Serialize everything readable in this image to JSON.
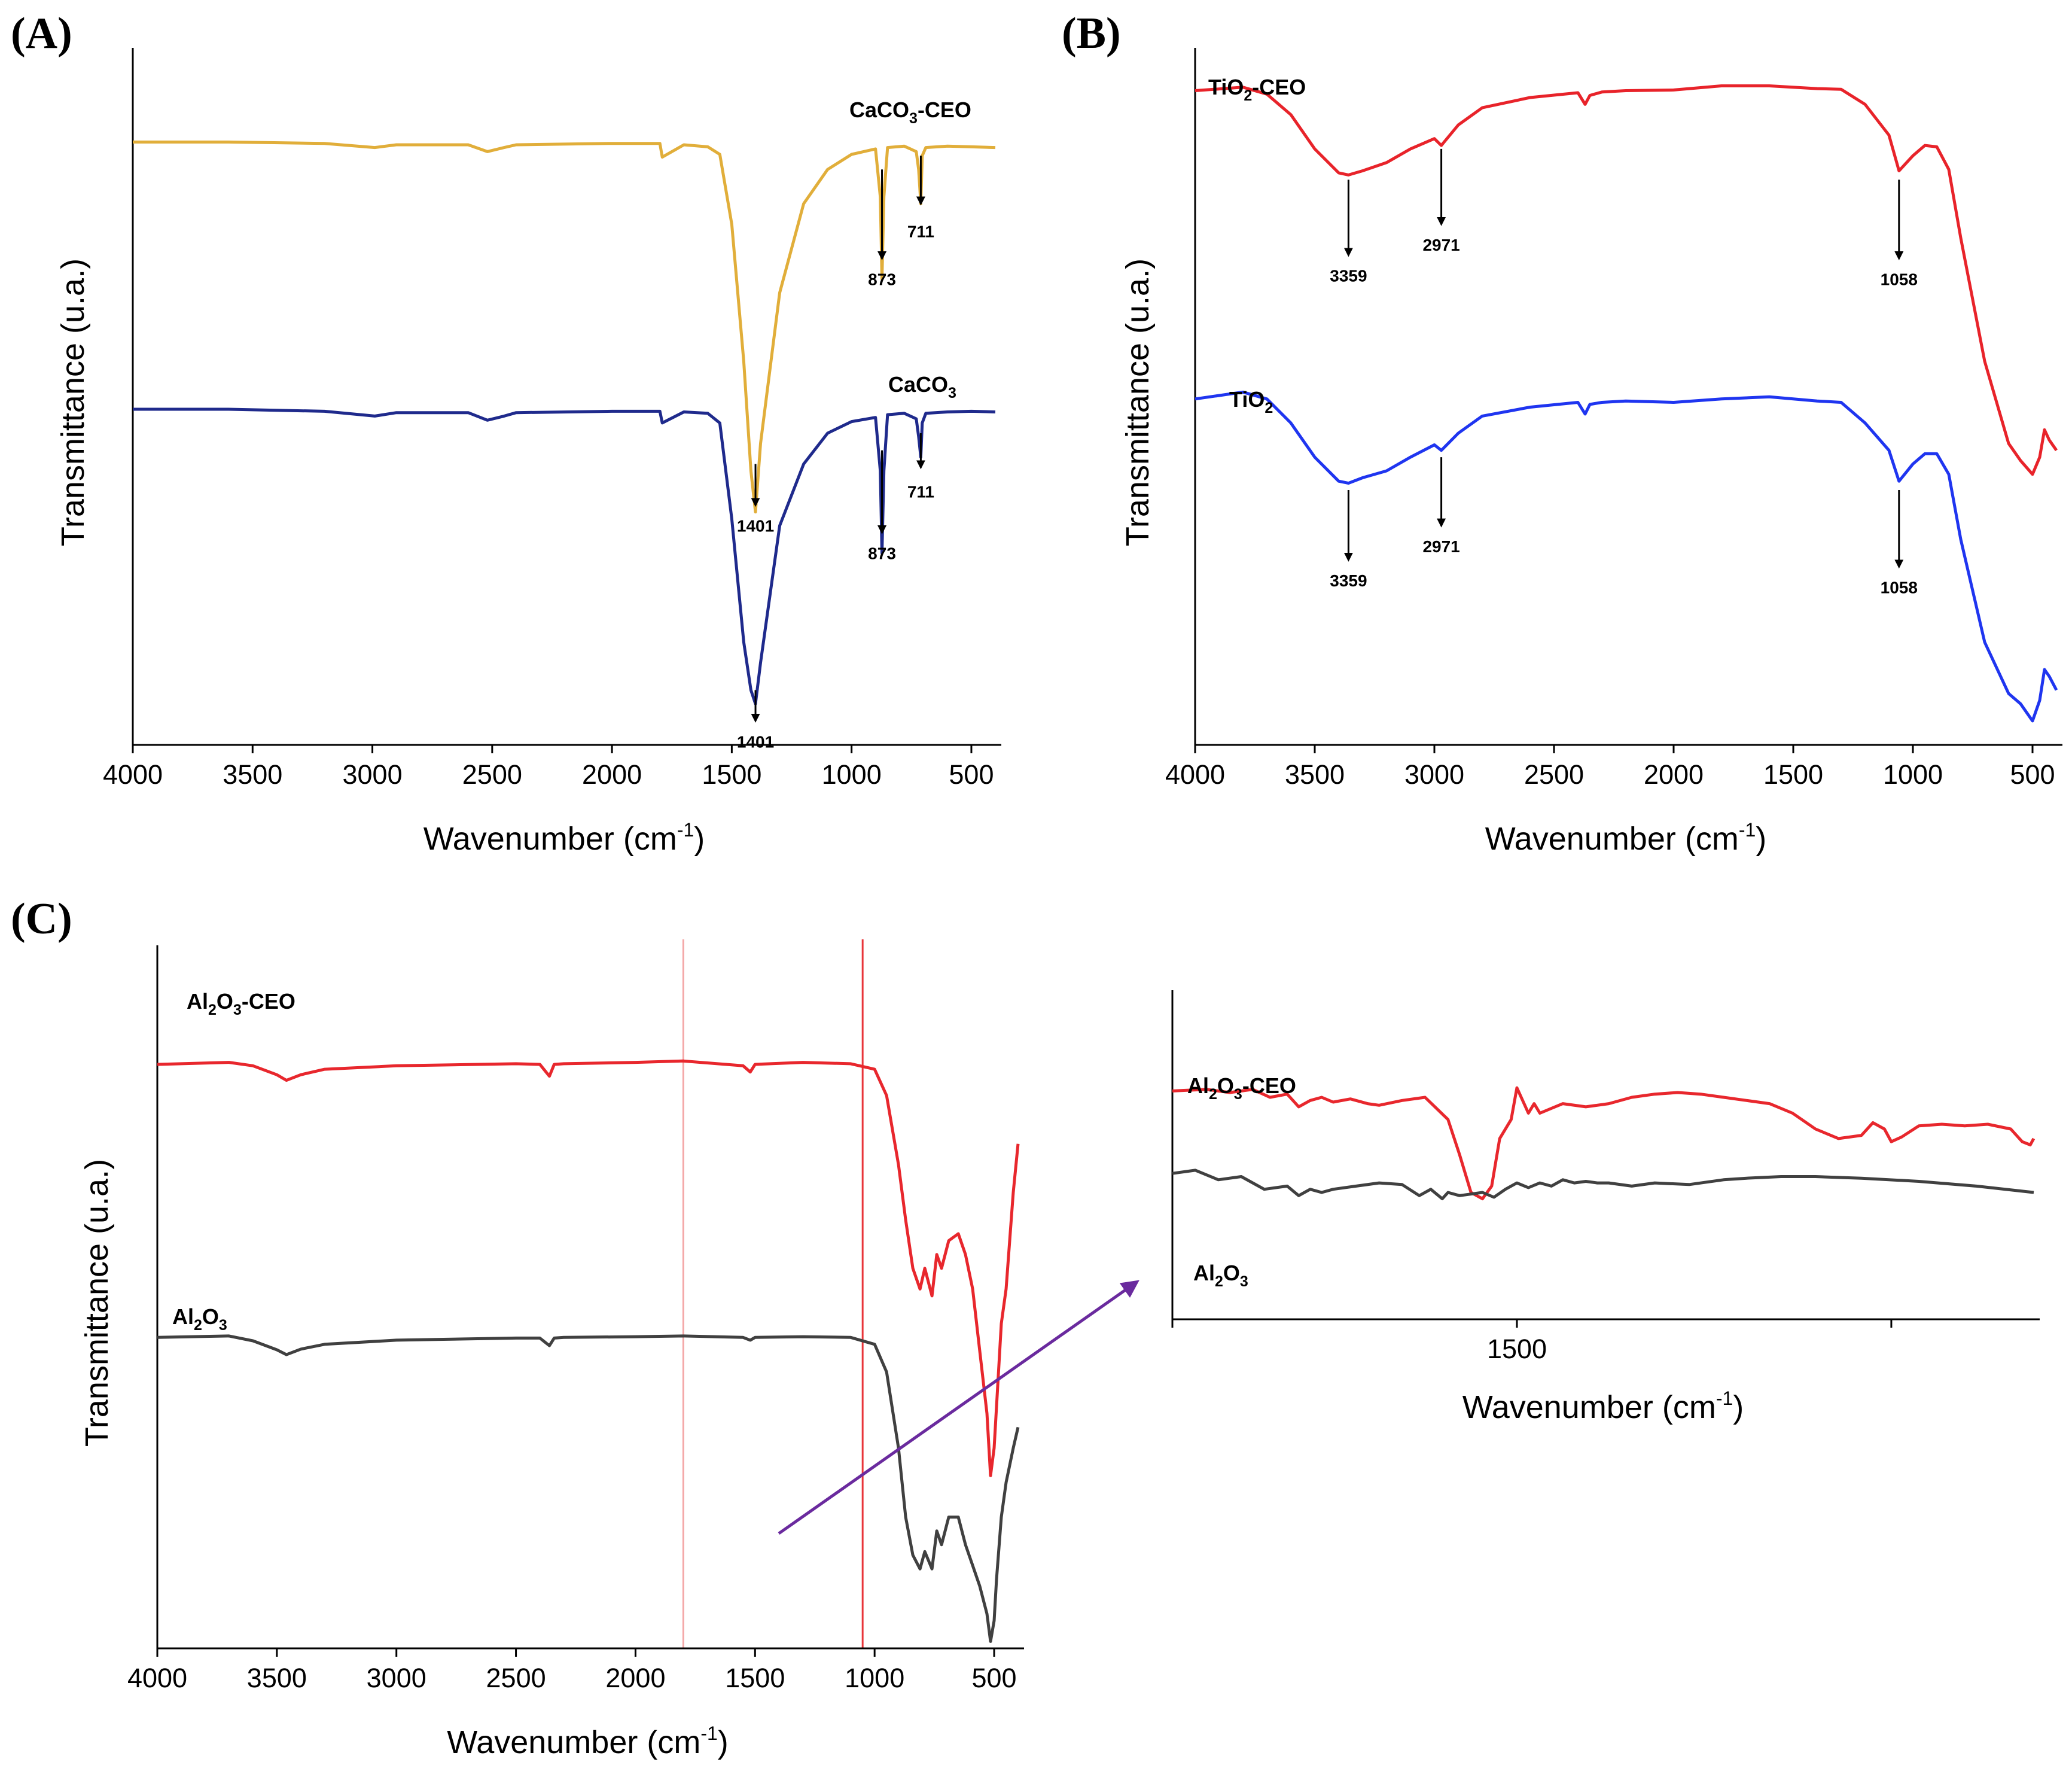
{
  "chart_data": [
    {
      "type": "line",
      "panel": "(A)",
      "xlabel": "Wavenumber (cm-1)",
      "xlabel_text": "Wavenumber (cm",
      "xlabel_sup": "-1",
      "xlabel_close": ")",
      "ylabel": "Transmittance (u.a.)",
      "xlim": [
        4000,
        400
      ],
      "xticks": [
        4000,
        3500,
        3000,
        2500,
        2000,
        1500,
        1000,
        500
      ],
      "ylim": [
        0,
        1
      ],
      "series": [
        {
          "name": "CaCO3-CEO",
          "label_main": "CaCO",
          "label_sub": "3",
          "label_suffix": "-CEO",
          "color": "#E1AE3A",
          "x": [
            4000,
            3600,
            3200,
            2990,
            2900,
            2600,
            2520,
            2450,
            2400,
            2000,
            1800,
            1790,
            1700,
            1600,
            1550,
            1500,
            1450,
            1420,
            1401,
            1380,
            1300,
            1200,
            1100,
            1000,
            900,
            880,
            873,
            865,
            850,
            780,
            730,
            720,
            711,
            705,
            690,
            600,
            500,
            400
          ],
          "y": [
            0.88,
            0.88,
            0.878,
            0.872,
            0.876,
            0.876,
            0.866,
            0.872,
            0.876,
            0.878,
            0.878,
            0.858,
            0.876,
            0.873,
            0.862,
            0.76,
            0.56,
            0.4,
            0.34,
            0.44,
            0.66,
            0.79,
            0.84,
            0.862,
            0.87,
            0.8,
            0.68,
            0.8,
            0.872,
            0.874,
            0.866,
            0.84,
            0.79,
            0.86,
            0.872,
            0.874,
            0.873,
            0.872
          ],
          "peaks": [
            {
              "x": 1401,
              "label": "1401",
              "y_tip": 0.41,
              "y_end": 0.35,
              "label_y": 0.32,
              "label_dx": 0
            },
            {
              "x": 873,
              "label": "873",
              "y_tip": 0.84,
              "y_end": 0.71,
              "label_y": 0.68,
              "label_dx": 0
            },
            {
              "x": 711,
              "label": "711",
              "y_tip": 0.86,
              "y_end": 0.79,
              "label_y": 0.75,
              "label_dx": 0
            }
          ]
        },
        {
          "name": "CaCO3",
          "label_main": "CaCO",
          "label_sub": "3",
          "label_suffix": "",
          "color": "#1F2A8C",
          "x": [
            4000,
            3600,
            3200,
            2990,
            2900,
            2600,
            2520,
            2450,
            2400,
            2000,
            1800,
            1790,
            1700,
            1600,
            1550,
            1500,
            1450,
            1420,
            1401,
            1380,
            1300,
            1200,
            1100,
            1000,
            900,
            880,
            873,
            865,
            850,
            780,
            730,
            720,
            711,
            705,
            690,
            600,
            500,
            400
          ],
          "y": [
            0.49,
            0.49,
            0.487,
            0.48,
            0.485,
            0.485,
            0.474,
            0.48,
            0.485,
            0.487,
            0.487,
            0.47,
            0.486,
            0.484,
            0.47,
            0.33,
            0.15,
            0.08,
            0.06,
            0.12,
            0.32,
            0.41,
            0.455,
            0.472,
            0.478,
            0.4,
            0.28,
            0.4,
            0.482,
            0.484,
            0.476,
            0.45,
            0.42,
            0.47,
            0.484,
            0.486,
            0.487,
            0.486
          ],
          "peaks": [
            {
              "x": 1401,
              "label": "1401",
              "y_tip": 0.08,
              "y_end": 0.035,
              "label_y": 0.005,
              "label_dx": 0
            },
            {
              "x": 873,
              "label": "873",
              "y_tip": 0.43,
              "y_end": 0.31,
              "label_y": 0.28,
              "label_dx": 0
            },
            {
              "x": 711,
              "label": "711",
              "y_tip": 0.455,
              "y_end": 0.405,
              "label_y": 0.37,
              "label_dx": 0
            }
          ]
        }
      ]
    },
    {
      "type": "line",
      "panel": "(B)",
      "xlabel": "Wavenumber (cm-1)",
      "xlabel_text": "Wavenumber (cm",
      "xlabel_sup": "-1",
      "xlabel_close": ")",
      "ylabel": "Transmittance (u.a.)",
      "xlim": [
        4000,
        400
      ],
      "xticks": [
        4000,
        3500,
        3000,
        2500,
        2000,
        1500,
        1000,
        500
      ],
      "ylim": [
        0,
        1
      ],
      "series": [
        {
          "name": "TiO2-CEO",
          "label_main": "TiO",
          "label_sub": "2",
          "label_suffix": "-CEO",
          "color": "#E8232A",
          "x": [
            4000,
            3800,
            3700,
            3600,
            3500,
            3400,
            3359,
            3300,
            3200,
            3100,
            3000,
            2971,
            2900,
            2800,
            2600,
            2400,
            2370,
            2350,
            2300,
            2200,
            2000,
            1800,
            1600,
            1400,
            1300,
            1200,
            1100,
            1058,
            1000,
            950,
            900,
            850,
            800,
            700,
            600,
            550,
            500,
            470,
            450,
            430,
            400
          ],
          "y": [
            0.955,
            0.96,
            0.95,
            0.92,
            0.87,
            0.835,
            0.832,
            0.838,
            0.85,
            0.87,
            0.885,
            0.875,
            0.905,
            0.93,
            0.945,
            0.952,
            0.935,
            0.948,
            0.953,
            0.955,
            0.956,
            0.962,
            0.962,
            0.958,
            0.957,
            0.935,
            0.89,
            0.838,
            0.86,
            0.875,
            0.873,
            0.84,
            0.74,
            0.56,
            0.44,
            0.415,
            0.395,
            0.42,
            0.46,
            0.445,
            0.43
          ],
          "peaks": [
            {
              "x": 3359,
              "label": "3359",
              "y_tip": 0.825,
              "y_end": 0.715,
              "label_y": 0.685,
              "label_dx": 0
            },
            {
              "x": 2971,
              "label": "2971",
              "y_tip": 0.87,
              "y_end": 0.76,
              "label_y": 0.73,
              "label_dx": 0
            },
            {
              "x": 1058,
              "label": "1058",
              "y_tip": 0.825,
              "y_end": 0.71,
              "label_y": 0.68,
              "label_dx": 0
            }
          ]
        },
        {
          "name": "TiO2",
          "label_main": "TiO",
          "label_sub": "2",
          "label_suffix": "",
          "color": "#1F35F0",
          "x": [
            4000,
            3800,
            3700,
            3600,
            3500,
            3400,
            3359,
            3300,
            3200,
            3100,
            3000,
            2971,
            2900,
            2800,
            2600,
            2400,
            2370,
            2350,
            2300,
            2200,
            2000,
            1800,
            1600,
            1400,
            1300,
            1200,
            1100,
            1058,
            1000,
            950,
            900,
            850,
            800,
            700,
            600,
            550,
            500,
            470,
            450,
            430,
            400
          ],
          "y": [
            0.505,
            0.515,
            0.505,
            0.47,
            0.42,
            0.385,
            0.382,
            0.39,
            0.4,
            0.42,
            0.438,
            0.43,
            0.455,
            0.48,
            0.493,
            0.5,
            0.483,
            0.497,
            0.5,
            0.502,
            0.5,
            0.505,
            0.508,
            0.502,
            0.5,
            0.47,
            0.43,
            0.385,
            0.41,
            0.425,
            0.425,
            0.395,
            0.3,
            0.15,
            0.075,
            0.06,
            0.035,
            0.065,
            0.11,
            0.1,
            0.08
          ],
          "peaks": [
            {
              "x": 3359,
              "label": "3359",
              "y_tip": 0.372,
              "y_end": 0.27,
              "label_y": 0.24,
              "label_dx": 0
            },
            {
              "x": 2971,
              "label": "2971",
              "y_tip": 0.42,
              "y_end": 0.32,
              "label_y": 0.29,
              "label_dx": 0
            },
            {
              "x": 1058,
              "label": "1058",
              "y_tip": 0.372,
              "y_end": 0.26,
              "label_y": 0.23,
              "label_dx": 0
            }
          ]
        }
      ]
    },
    {
      "type": "line",
      "panel": "(C)",
      "xlabel": "Wavenumber (cm-1)",
      "xlabel_text": "Wavenumber (cm",
      "xlabel_sup": "-1",
      "xlabel_close": ")",
      "ylabel": "Transmittance (u.a.)",
      "xlim": [
        4000,
        400
      ],
      "xticks": [
        4000,
        3500,
        3000,
        2500,
        2000,
        1500,
        1000,
        500
      ],
      "ylim": [
        0,
        1
      ],
      "highlight_lines": [
        {
          "x": 1800,
          "color": "#F4A8A8"
        },
        {
          "x": 1050,
          "color": "#E8363A"
        }
      ],
      "series": [
        {
          "name": "Al2O3-CEO",
          "label_main": "Al",
          "label_sub": "2",
          "label_mid": "O",
          "label_sub2": "3",
          "label_suffix": "-CEO",
          "color": "#E8272D",
          "x": [
            4000,
            3700,
            3600,
            3500,
            3460,
            3400,
            3300,
            3000,
            2500,
            2400,
            2360,
            2340,
            2300,
            2000,
            1800,
            1550,
            1520,
            1500,
            1300,
            1100,
            1000,
            950,
            900,
            870,
            840,
            810,
            790,
            760,
            740,
            720,
            690,
            650,
            620,
            590,
            560,
            530,
            515,
            500,
            490,
            470,
            450,
            420,
            400
          ],
          "y": [
            0.845,
            0.848,
            0.843,
            0.83,
            0.822,
            0.83,
            0.838,
            0.843,
            0.846,
            0.845,
            0.828,
            0.845,
            0.846,
            0.848,
            0.85,
            0.843,
            0.834,
            0.845,
            0.848,
            0.846,
            0.838,
            0.8,
            0.7,
            0.62,
            0.55,
            0.52,
            0.55,
            0.51,
            0.57,
            0.55,
            0.59,
            0.6,
            0.57,
            0.52,
            0.43,
            0.34,
            0.25,
            0.29,
            0.35,
            0.47,
            0.52,
            0.66,
            0.73
          ],
          "peaks": []
        },
        {
          "name": "Al2O3",
          "label_main": "Al",
          "label_sub": "2",
          "label_mid": "O",
          "label_sub2": "3",
          "label_suffix": "",
          "color": "#404040",
          "x": [
            4000,
            3700,
            3600,
            3500,
            3460,
            3400,
            3300,
            3000,
            2500,
            2400,
            2360,
            2340,
            2300,
            2000,
            1800,
            1550,
            1520,
            1500,
            1300,
            1100,
            1000,
            950,
            900,
            870,
            840,
            810,
            790,
            760,
            740,
            720,
            690,
            650,
            620,
            590,
            560,
            530,
            515,
            500,
            490,
            470,
            450,
            420,
            400
          ],
          "y": [
            0.45,
            0.452,
            0.445,
            0.432,
            0.425,
            0.433,
            0.44,
            0.446,
            0.449,
            0.449,
            0.438,
            0.449,
            0.45,
            0.451,
            0.452,
            0.45,
            0.446,
            0.45,
            0.451,
            0.45,
            0.44,
            0.4,
            0.29,
            0.19,
            0.135,
            0.115,
            0.14,
            0.115,
            0.17,
            0.15,
            0.19,
            0.19,
            0.15,
            0.12,
            0.09,
            0.05,
            0.01,
            0.04,
            0.1,
            0.19,
            0.24,
            0.29,
            0.32
          ],
          "peaks": []
        }
      ]
    },
    {
      "type": "line",
      "panel": "C-inset",
      "xlabel": "Wavenumber (cm-1)",
      "xlabel_text": "Wavenumber (cm",
      "xlabel_sup": "-1",
      "xlabel_close": ")",
      "ylabel": "",
      "xlim": [
        1800,
        1050
      ],
      "xticks": [
        1500
      ],
      "minor_ticks": [
        1800,
        1174
      ],
      "ylim": [
        0,
        1
      ],
      "zoom_arrow_color": "#6A2A9E",
      "series": [
        {
          "name": "Al2O3-CEO",
          "label_main": "Al",
          "label_sub": "2",
          "label_mid": "O",
          "label_sub2": "3",
          "label_suffix": "-CEO",
          "color": "#E8272D",
          "x": [
            1800,
            1770,
            1750,
            1730,
            1715,
            1700,
            1690,
            1680,
            1670,
            1660,
            1645,
            1630,
            1620,
            1600,
            1580,
            1560,
            1550,
            1540,
            1530,
            1522,
            1515,
            1505,
            1500,
            1490,
            1485,
            1480,
            1470,
            1460,
            1440,
            1420,
            1400,
            1380,
            1360,
            1340,
            1320,
            1300,
            1280,
            1260,
            1240,
            1220,
            1200,
            1190,
            1180,
            1174,
            1165,
            1150,
            1130,
            1110,
            1090,
            1070,
            1060,
            1053,
            1050
          ],
          "y": [
            0.72,
            0.725,
            0.715,
            0.725,
            0.7,
            0.71,
            0.67,
            0.69,
            0.7,
            0.685,
            0.695,
            0.68,
            0.675,
            0.69,
            0.7,
            0.63,
            0.52,
            0.4,
            0.38,
            0.42,
            0.57,
            0.63,
            0.73,
            0.65,
            0.68,
            0.65,
            0.665,
            0.68,
            0.67,
            0.68,
            0.7,
            0.71,
            0.715,
            0.71,
            0.7,
            0.69,
            0.68,
            0.65,
            0.6,
            0.57,
            0.58,
            0.62,
            0.6,
            0.56,
            0.575,
            0.61,
            0.615,
            0.61,
            0.615,
            0.6,
            0.56,
            0.55,
            0.57
          ],
          "peaks": []
        },
        {
          "name": "Al2O3",
          "label_main": "Al",
          "label_sub": "2",
          "label_mid": "O",
          "label_sub2": "3",
          "label_suffix": "",
          "color": "#404040",
          "x": [
            1800,
            1780,
            1760,
            1740,
            1720,
            1700,
            1690,
            1680,
            1670,
            1660,
            1640,
            1620,
            1600,
            1585,
            1575,
            1565,
            1560,
            1550,
            1540,
            1530,
            1520,
            1510,
            1500,
            1490,
            1480,
            1470,
            1460,
            1450,
            1440,
            1430,
            1420,
            1400,
            1380,
            1350,
            1320,
            1300,
            1270,
            1240,
            1200,
            1150,
            1100,
            1050
          ],
          "y": [
            0.46,
            0.47,
            0.44,
            0.45,
            0.41,
            0.42,
            0.39,
            0.41,
            0.4,
            0.41,
            0.42,
            0.43,
            0.425,
            0.39,
            0.41,
            0.38,
            0.4,
            0.39,
            0.395,
            0.4,
            0.385,
            0.41,
            0.43,
            0.415,
            0.43,
            0.42,
            0.44,
            0.43,
            0.435,
            0.43,
            0.43,
            0.42,
            0.43,
            0.425,
            0.44,
            0.445,
            0.45,
            0.45,
            0.445,
            0.435,
            0.42,
            0.4
          ],
          "peaks": []
        }
      ]
    }
  ]
}
